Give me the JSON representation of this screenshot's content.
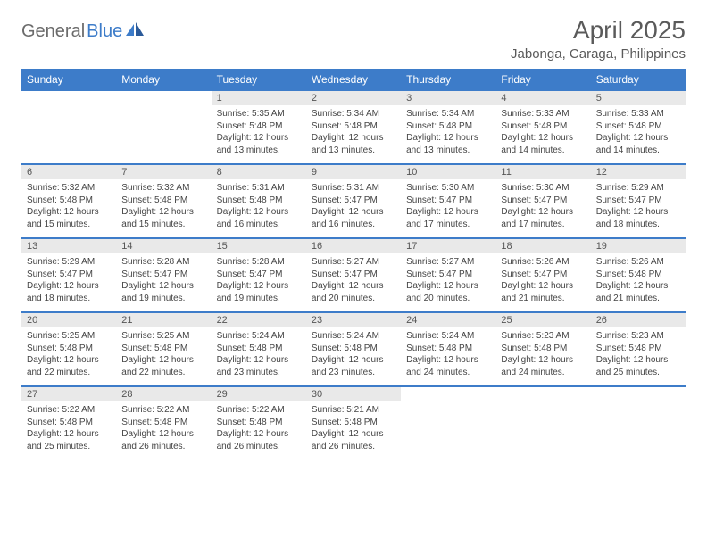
{
  "logo": {
    "part1": "General",
    "part2": "Blue"
  },
  "title": "April 2025",
  "location": "Jabonga, Caraga, Philippines",
  "colors": {
    "header_bg": "#3d7cc9",
    "daynum_bg": "#e9e9e9",
    "row_border": "#3d7cc9",
    "text": "#444444",
    "title_text": "#5a5a5a"
  },
  "weekdays": [
    "Sunday",
    "Monday",
    "Tuesday",
    "Wednesday",
    "Thursday",
    "Friday",
    "Saturday"
  ],
  "weeks": [
    {
      "nums": [
        "",
        "",
        "1",
        "2",
        "3",
        "4",
        "5"
      ],
      "cells": [
        null,
        null,
        {
          "sunrise": "Sunrise: 5:35 AM",
          "sunset": "Sunset: 5:48 PM",
          "day1": "Daylight: 12 hours",
          "day2": "and 13 minutes."
        },
        {
          "sunrise": "Sunrise: 5:34 AM",
          "sunset": "Sunset: 5:48 PM",
          "day1": "Daylight: 12 hours",
          "day2": "and 13 minutes."
        },
        {
          "sunrise": "Sunrise: 5:34 AM",
          "sunset": "Sunset: 5:48 PM",
          "day1": "Daylight: 12 hours",
          "day2": "and 13 minutes."
        },
        {
          "sunrise": "Sunrise: 5:33 AM",
          "sunset": "Sunset: 5:48 PM",
          "day1": "Daylight: 12 hours",
          "day2": "and 14 minutes."
        },
        {
          "sunrise": "Sunrise: 5:33 AM",
          "sunset": "Sunset: 5:48 PM",
          "day1": "Daylight: 12 hours",
          "day2": "and 14 minutes."
        }
      ]
    },
    {
      "nums": [
        "6",
        "7",
        "8",
        "9",
        "10",
        "11",
        "12"
      ],
      "cells": [
        {
          "sunrise": "Sunrise: 5:32 AM",
          "sunset": "Sunset: 5:48 PM",
          "day1": "Daylight: 12 hours",
          "day2": "and 15 minutes."
        },
        {
          "sunrise": "Sunrise: 5:32 AM",
          "sunset": "Sunset: 5:48 PM",
          "day1": "Daylight: 12 hours",
          "day2": "and 15 minutes."
        },
        {
          "sunrise": "Sunrise: 5:31 AM",
          "sunset": "Sunset: 5:48 PM",
          "day1": "Daylight: 12 hours",
          "day2": "and 16 minutes."
        },
        {
          "sunrise": "Sunrise: 5:31 AM",
          "sunset": "Sunset: 5:47 PM",
          "day1": "Daylight: 12 hours",
          "day2": "and 16 minutes."
        },
        {
          "sunrise": "Sunrise: 5:30 AM",
          "sunset": "Sunset: 5:47 PM",
          "day1": "Daylight: 12 hours",
          "day2": "and 17 minutes."
        },
        {
          "sunrise": "Sunrise: 5:30 AM",
          "sunset": "Sunset: 5:47 PM",
          "day1": "Daylight: 12 hours",
          "day2": "and 17 minutes."
        },
        {
          "sunrise": "Sunrise: 5:29 AM",
          "sunset": "Sunset: 5:47 PM",
          "day1": "Daylight: 12 hours",
          "day2": "and 18 minutes."
        }
      ]
    },
    {
      "nums": [
        "13",
        "14",
        "15",
        "16",
        "17",
        "18",
        "19"
      ],
      "cells": [
        {
          "sunrise": "Sunrise: 5:29 AM",
          "sunset": "Sunset: 5:47 PM",
          "day1": "Daylight: 12 hours",
          "day2": "and 18 minutes."
        },
        {
          "sunrise": "Sunrise: 5:28 AM",
          "sunset": "Sunset: 5:47 PM",
          "day1": "Daylight: 12 hours",
          "day2": "and 19 minutes."
        },
        {
          "sunrise": "Sunrise: 5:28 AM",
          "sunset": "Sunset: 5:47 PM",
          "day1": "Daylight: 12 hours",
          "day2": "and 19 minutes."
        },
        {
          "sunrise": "Sunrise: 5:27 AM",
          "sunset": "Sunset: 5:47 PM",
          "day1": "Daylight: 12 hours",
          "day2": "and 20 minutes."
        },
        {
          "sunrise": "Sunrise: 5:27 AM",
          "sunset": "Sunset: 5:47 PM",
          "day1": "Daylight: 12 hours",
          "day2": "and 20 minutes."
        },
        {
          "sunrise": "Sunrise: 5:26 AM",
          "sunset": "Sunset: 5:47 PM",
          "day1": "Daylight: 12 hours",
          "day2": "and 21 minutes."
        },
        {
          "sunrise": "Sunrise: 5:26 AM",
          "sunset": "Sunset: 5:48 PM",
          "day1": "Daylight: 12 hours",
          "day2": "and 21 minutes."
        }
      ]
    },
    {
      "nums": [
        "20",
        "21",
        "22",
        "23",
        "24",
        "25",
        "26"
      ],
      "cells": [
        {
          "sunrise": "Sunrise: 5:25 AM",
          "sunset": "Sunset: 5:48 PM",
          "day1": "Daylight: 12 hours",
          "day2": "and 22 minutes."
        },
        {
          "sunrise": "Sunrise: 5:25 AM",
          "sunset": "Sunset: 5:48 PM",
          "day1": "Daylight: 12 hours",
          "day2": "and 22 minutes."
        },
        {
          "sunrise": "Sunrise: 5:24 AM",
          "sunset": "Sunset: 5:48 PM",
          "day1": "Daylight: 12 hours",
          "day2": "and 23 minutes."
        },
        {
          "sunrise": "Sunrise: 5:24 AM",
          "sunset": "Sunset: 5:48 PM",
          "day1": "Daylight: 12 hours",
          "day2": "and 23 minutes."
        },
        {
          "sunrise": "Sunrise: 5:24 AM",
          "sunset": "Sunset: 5:48 PM",
          "day1": "Daylight: 12 hours",
          "day2": "and 24 minutes."
        },
        {
          "sunrise": "Sunrise: 5:23 AM",
          "sunset": "Sunset: 5:48 PM",
          "day1": "Daylight: 12 hours",
          "day2": "and 24 minutes."
        },
        {
          "sunrise": "Sunrise: 5:23 AM",
          "sunset": "Sunset: 5:48 PM",
          "day1": "Daylight: 12 hours",
          "day2": "and 25 minutes."
        }
      ]
    },
    {
      "nums": [
        "27",
        "28",
        "29",
        "30",
        "",
        "",
        ""
      ],
      "cells": [
        {
          "sunrise": "Sunrise: 5:22 AM",
          "sunset": "Sunset: 5:48 PM",
          "day1": "Daylight: 12 hours",
          "day2": "and 25 minutes."
        },
        {
          "sunrise": "Sunrise: 5:22 AM",
          "sunset": "Sunset: 5:48 PM",
          "day1": "Daylight: 12 hours",
          "day2": "and 26 minutes."
        },
        {
          "sunrise": "Sunrise: 5:22 AM",
          "sunset": "Sunset: 5:48 PM",
          "day1": "Daylight: 12 hours",
          "day2": "and 26 minutes."
        },
        {
          "sunrise": "Sunrise: 5:21 AM",
          "sunset": "Sunset: 5:48 PM",
          "day1": "Daylight: 12 hours",
          "day2": "and 26 minutes."
        },
        null,
        null,
        null
      ]
    }
  ]
}
